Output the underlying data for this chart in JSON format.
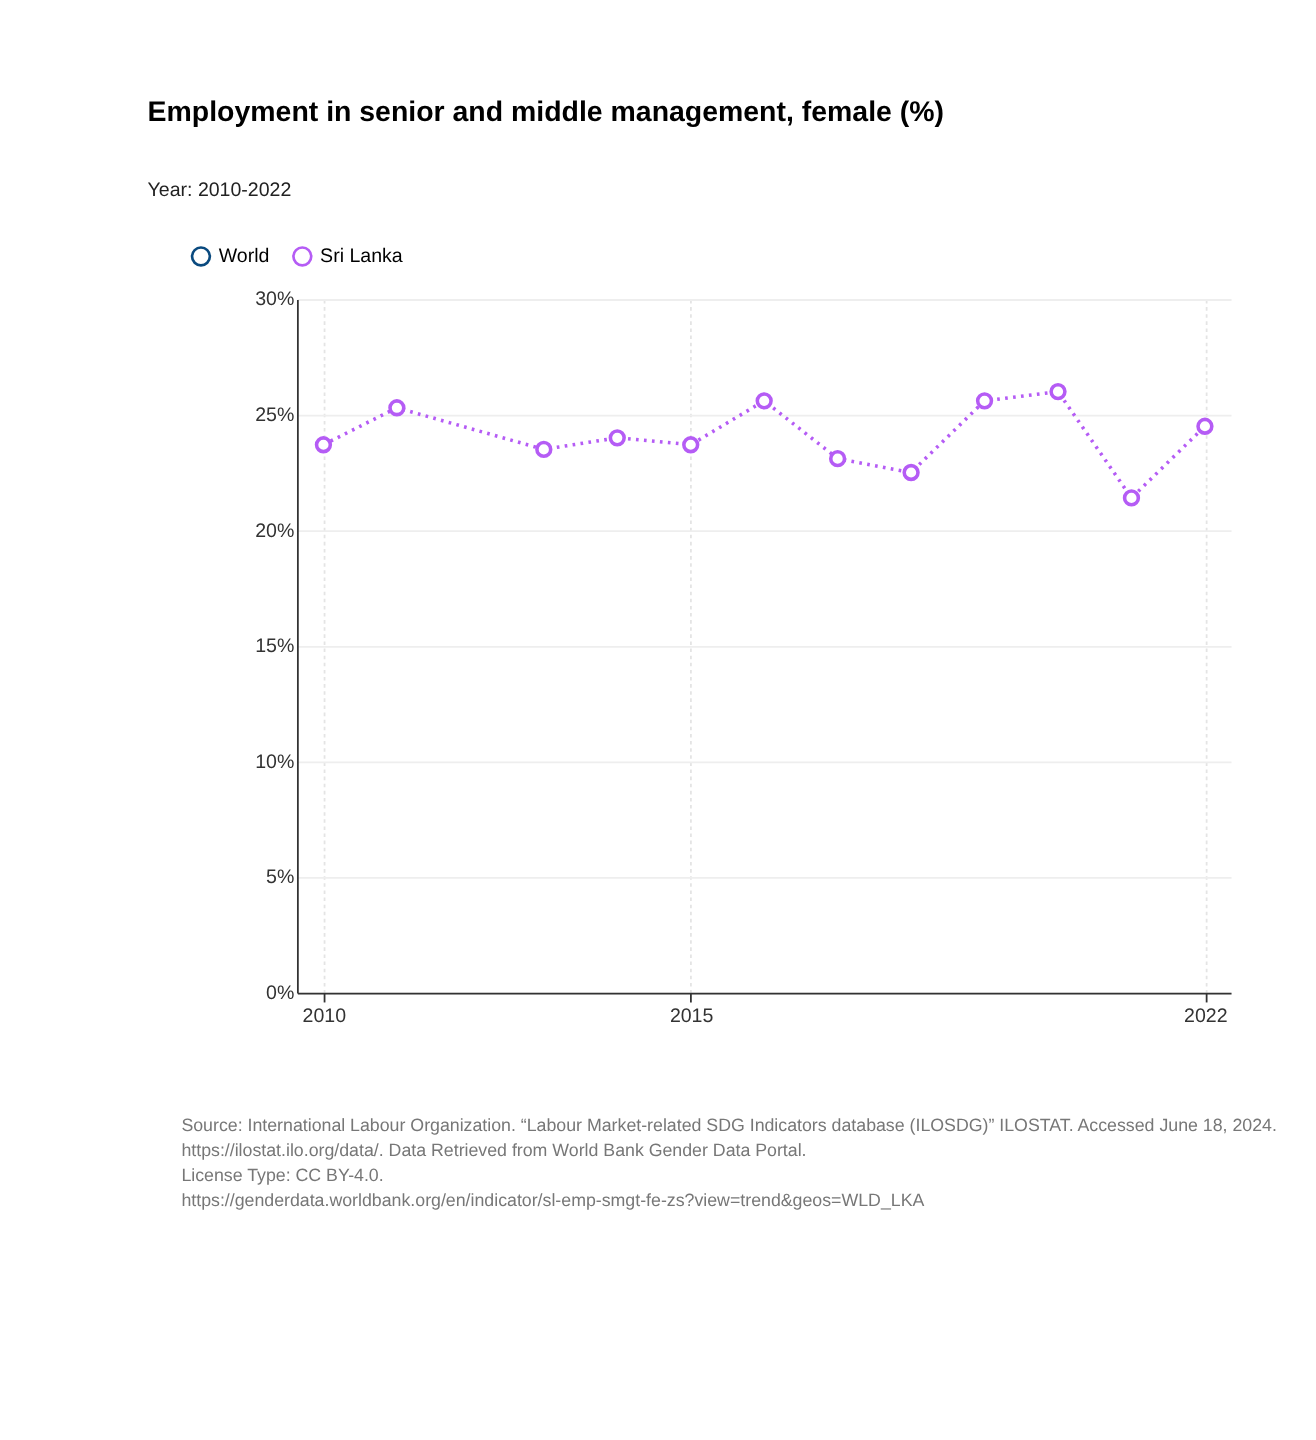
{
  "chart_data": {
    "type": "line",
    "title": "Employment in senior and middle management, female (%)",
    "subtitle": "Year: 2010-2022",
    "series": [
      {
        "name": "World",
        "color": "#0a4a7f"
      },
      {
        "name": "Sri Lanka",
        "color": "#b55cf5",
        "x": [
          2010,
          2011,
          2013,
          2014,
          2015,
          2016,
          2017,
          2018,
          2019,
          2020,
          2021,
          2022
        ],
        "values": [
          23.7,
          25.3,
          23.5,
          24.0,
          23.7,
          25.6,
          23.1,
          22.5,
          25.6,
          26.0,
          21.4,
          24.5
        ]
      }
    ],
    "xlim": [
      2009.64,
      2022.35
    ],
    "xticks": [
      2010,
      2015,
      2022
    ],
    "ylim": [
      0,
      30
    ],
    "yticks": [
      {
        "value": 0,
        "label": "0%"
      },
      {
        "value": 5,
        "label": "5%"
      },
      {
        "value": 10,
        "label": "10%"
      },
      {
        "value": 15,
        "label": "15%"
      },
      {
        "value": 20,
        "label": "20%"
      },
      {
        "value": 25,
        "label": "25%"
      },
      {
        "value": 30,
        "label": "30%"
      }
    ],
    "grid": true,
    "legend": "top left",
    "marker": "circle",
    "line_style": "dotted",
    "annotations": [
      "Source: International Labour Organization. “Labour Market-related SDG Indicators database (ILOSDG)” ILOSTAT. Accessed June 18, 2024.",
      "https://ilostat.ilo.org/data/. Data Retrieved from World Bank Gender Data Portal.",
      "License Type: CC BY-4.0.",
      "https://genderdata.worldbank.org/en/indicator/sl-emp-smgt-fe-zs?view=trend&geos=WLD_LKA"
    ]
  }
}
